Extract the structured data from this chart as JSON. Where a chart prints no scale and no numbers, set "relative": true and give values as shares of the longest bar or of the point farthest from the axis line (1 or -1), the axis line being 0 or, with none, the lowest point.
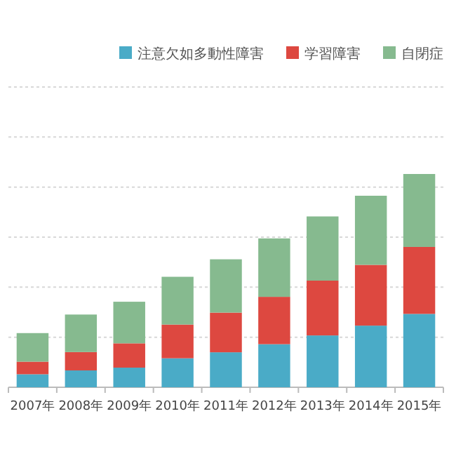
{
  "chart_data": {
    "type": "bar",
    "stacked": true,
    "relative": true,
    "grid": "y",
    "legend": "top right",
    "categories": [
      "2007年",
      "2008年",
      "2009年",
      "2010年",
      "2011年",
      "2012年",
      "2013年",
      "2014年",
      "2015年"
    ],
    "series": [
      {
        "name": "注意欠如多動性障害",
        "color": "#4aabc7",
        "values": [
          0.061,
          0.079,
          0.092,
          0.136,
          0.164,
          0.202,
          0.243,
          0.289,
          0.344
        ]
      },
      {
        "name": "学習障害",
        "color": "#dd4840",
        "values": [
          0.059,
          0.086,
          0.114,
          0.158,
          0.186,
          0.222,
          0.257,
          0.285,
          0.314
        ]
      },
      {
        "name": "自閉症",
        "color": "#86ba8f",
        "values": [
          0.134,
          0.176,
          0.195,
          0.224,
          0.25,
          0.274,
          0.301,
          0.324,
          0.342
        ]
      }
    ]
  }
}
